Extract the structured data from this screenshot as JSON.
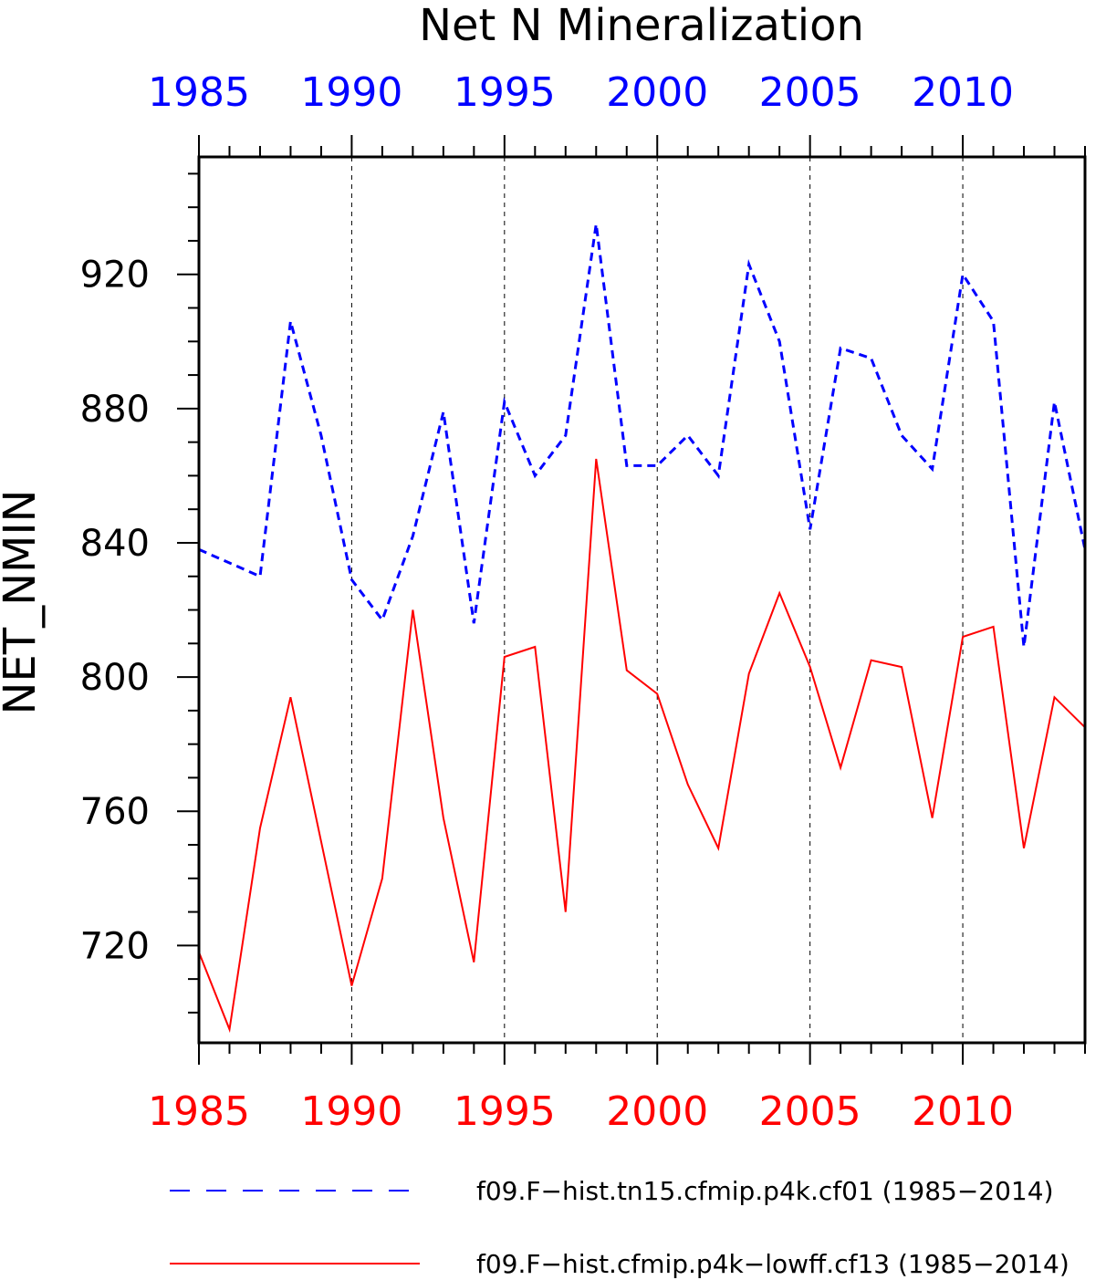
{
  "chart_data": {
    "type": "line",
    "title": "Net N Mineralization",
    "ylabel": "NET_NMIN",
    "xlabel": "",
    "x": [
      1985,
      1986,
      1987,
      1988,
      1989,
      1990,
      1991,
      1992,
      1993,
      1994,
      1995,
      1996,
      1997,
      1998,
      1999,
      2000,
      2001,
      2002,
      2003,
      2004,
      2005,
      2006,
      2007,
      2008,
      2009,
      2010,
      2011,
      2012,
      2013,
      2014
    ],
    "xlim": [
      1985,
      2014
    ],
    "ylim": [
      691,
      955
    ],
    "yticks": [
      720,
      760,
      800,
      840,
      880,
      920
    ],
    "xticks": [
      1985,
      1990,
      1995,
      2000,
      2005,
      2010
    ],
    "xticks_top_color": "#0000ff",
    "xticks_bottom_color": "#ff0000",
    "grid": "vertical dashed at major x ticks",
    "series": [
      {
        "name": "f09.F−hist.tn15.cfmip.p4k.cf01 (1985−2014)",
        "color": "#0000ff",
        "style": "dashed",
        "values": [
          838,
          834,
          830,
          906,
          872,
          829,
          817,
          842,
          879,
          816,
          882,
          860,
          872,
          935,
          863,
          863,
          872,
          860,
          923,
          900,
          844,
          898,
          895,
          872,
          862,
          920,
          906,
          809,
          882,
          838
        ]
      },
      {
        "name": "f09.F−hist.cfmip.p4k−lowff.cf13 (1985−2014)",
        "color": "#ff0000",
        "style": "solid",
        "values": [
          718,
          695,
          755,
          794,
          751,
          708,
          740,
          820,
          758,
          715,
          806,
          809,
          730,
          865,
          802,
          795,
          768,
          749,
          801,
          825,
          803,
          773,
          805,
          803,
          758,
          812,
          815,
          749,
          794,
          785
        ]
      }
    ],
    "legend_position": "bottom"
  }
}
